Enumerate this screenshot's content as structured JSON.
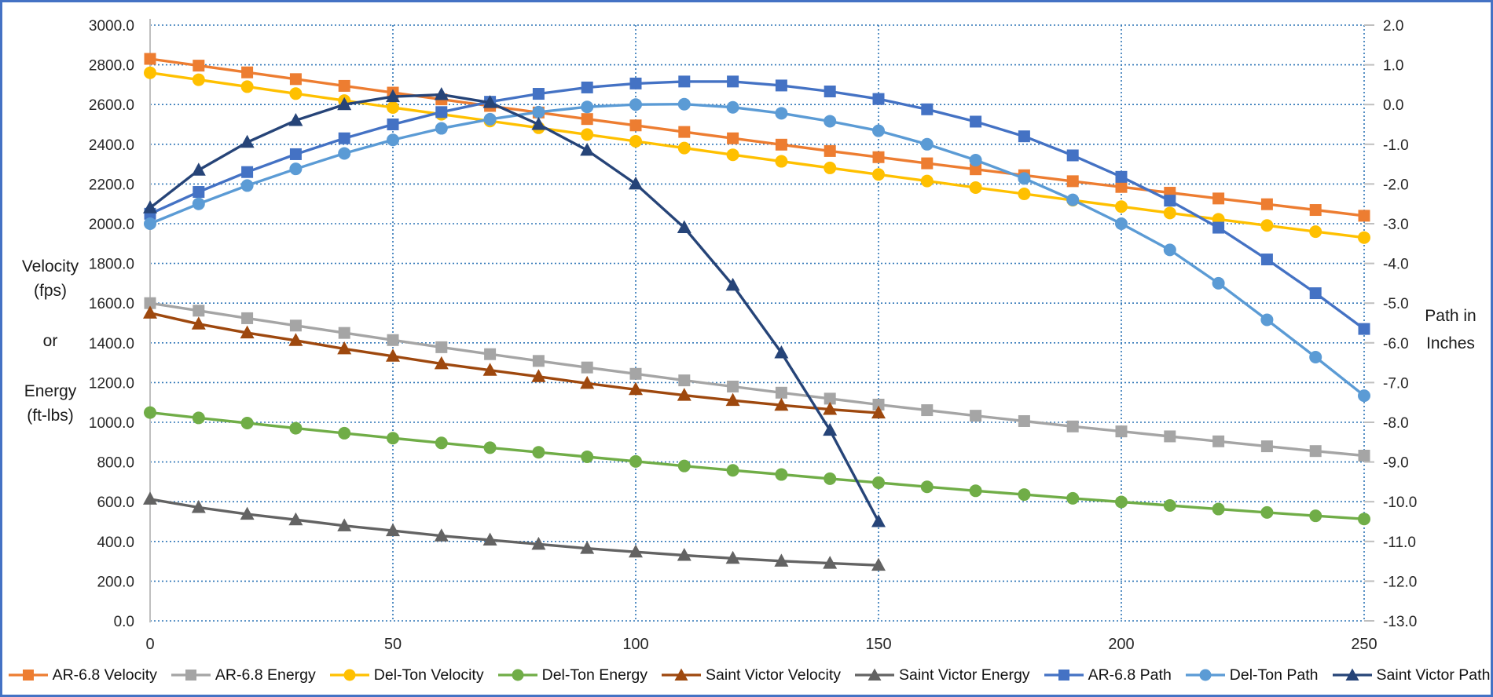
{
  "frame": {
    "border_color": "#4472C4",
    "background": "#ffffff"
  },
  "left_axis_title": {
    "line1": "Velocity",
    "line2": "(fps)",
    "line3": "or",
    "line4": "Energy",
    "line5": "(ft-lbs)"
  },
  "right_axis_title": {
    "line1": "Path in",
    "line2": "Inches"
  },
  "chart_data": {
    "type": "line",
    "title": "",
    "legend_position": "bottom",
    "grid": true,
    "gridline_color": "#2E75B6",
    "axis_line_color": "#BFBFBF",
    "tick_color": "#BFBFBF",
    "x_axis": {
      "min": 0,
      "max": 250,
      "tick_values": [
        0,
        50,
        100,
        150,
        200,
        250
      ],
      "tick_labels": [
        "0",
        "50",
        "100",
        "150",
        "200",
        "250"
      ],
      "gridline_values": [
        50,
        100,
        150,
        200,
        250
      ]
    },
    "left_axis": {
      "min": 0,
      "max": 3000,
      "step": 200,
      "tick_values": [
        0,
        200,
        400,
        600,
        800,
        1000,
        1200,
        1400,
        1600,
        1800,
        2000,
        2200,
        2400,
        2600,
        2800,
        3000
      ],
      "tick_labels": [
        "0.0",
        "200.0",
        "400.0",
        "600.0",
        "800.0",
        "1000.0",
        "1200.0",
        "1400.0",
        "1600.0",
        "1800.0",
        "2000.0",
        "2200.0",
        "2400.0",
        "2600.0",
        "2800.0",
        "3000.0"
      ]
    },
    "right_axis": {
      "min": -13,
      "max": 2,
      "step": 1,
      "tick_values": [
        -13,
        -12,
        -11,
        -10,
        -9,
        -8,
        -7,
        -6,
        -5,
        -4,
        -3,
        -2,
        -1,
        0,
        1,
        2
      ],
      "tick_labels": [
        "-13.0",
        "-12.0",
        "-11.0",
        "-10.0",
        "-9.0",
        "-8.0",
        "-7.0",
        "-6.0",
        "-5.0",
        "-4.0",
        "-3.0",
        "-2.0",
        "-1.0",
        "0.0",
        "1.0",
        "2.0"
      ]
    },
    "x": [
      0,
      10,
      20,
      30,
      40,
      50,
      60,
      70,
      80,
      90,
      100,
      110,
      120,
      130,
      140,
      150,
      160,
      170,
      180,
      190,
      200,
      210,
      220,
      230,
      240,
      250
    ],
    "series": [
      {
        "name": "AR-6.8 Velocity",
        "axis": "left",
        "color": "#ED7D31",
        "marker": "square",
        "values": [
          2830,
          2796,
          2762,
          2728,
          2694,
          2660,
          2626,
          2593,
          2560,
          2527,
          2495,
          2462,
          2430,
          2398,
          2366,
          2335,
          2304,
          2274,
          2244,
          2214,
          2185,
          2156,
          2127,
          2098,
          2069,
          2040
        ]
      },
      {
        "name": "AR-6.8 Energy",
        "axis": "left",
        "color": "#A5A5A5",
        "marker": "square",
        "values": [
          1600,
          1562,
          1524,
          1487,
          1450,
          1414,
          1378,
          1343,
          1309,
          1276,
          1244,
          1211,
          1180,
          1149,
          1119,
          1089,
          1061,
          1033,
          1006,
          979,
          954,
          929,
          904,
          879,
          855,
          832
        ]
      },
      {
        "name": "Del-Ton Velocity",
        "axis": "left",
        "color": "#FFC000",
        "marker": "circle",
        "values": [
          2760,
          2725,
          2690,
          2655,
          2620,
          2585,
          2551,
          2517,
          2483,
          2449,
          2415,
          2381,
          2347,
          2314,
          2281,
          2248,
          2215,
          2182,
          2150,
          2118,
          2086,
          2054,
          2022,
          1991,
          1960,
          1930
        ]
      },
      {
        "name": "Del-Ton Energy",
        "axis": "left",
        "color": "#70AD47",
        "marker": "circle",
        "values": [
          1049,
          1022,
          996,
          970,
          945,
          920,
          896,
          872,
          849,
          826,
          803,
          780,
          758,
          737,
          716,
          696,
          675,
          655,
          636,
          617,
          599,
          581,
          563,
          546,
          529,
          513
        ]
      },
      {
        "name": "Saint Victor Velocity",
        "axis": "left",
        "color": "#9E480E",
        "marker": "triangle",
        "values": [
          1550,
          1495,
          1450,
          1412,
          1370,
          1333,
          1295,
          1262,
          1230,
          1196,
          1165,
          1136,
          1110,
          1086,
          1065,
          1047
        ]
      },
      {
        "name": "Saint Victor Energy",
        "axis": "left",
        "color": "#636363",
        "marker": "triangle",
        "values": [
          613,
          571,
          537,
          509,
          479,
          454,
          428,
          407,
          386,
          365,
          347,
          330,
          315,
          301,
          290,
          280
        ]
      },
      {
        "name": "AR-6.8 Path",
        "axis": "right",
        "color": "#4472C4",
        "marker": "square",
        "values": [
          -2.75,
          -2.2,
          -1.7,
          -1.25,
          -0.85,
          -0.5,
          -0.19,
          0.07,
          0.27,
          0.43,
          0.53,
          0.58,
          0.58,
          0.48,
          0.33,
          0.14,
          -0.12,
          -0.43,
          -0.8,
          -1.28,
          -1.82,
          -2.42,
          -3.1,
          -3.9,
          -4.75,
          -5.65
        ]
      },
      {
        "name": "Del-Ton Path",
        "axis": "right",
        "color": "#5B9BD5",
        "marker": "circle",
        "values": [
          -3.0,
          -2.5,
          -2.04,
          -1.62,
          -1.23,
          -0.89,
          -0.6,
          -0.37,
          -0.19,
          -0.06,
          0.0,
          0.01,
          -0.07,
          -0.22,
          -0.42,
          -0.66,
          -1.0,
          -1.4,
          -1.86,
          -2.4,
          -3.0,
          -3.66,
          -4.5,
          -5.42,
          -6.36,
          -7.33
        ]
      },
      {
        "name": "Saint Victor Path",
        "axis": "right",
        "color": "#264478",
        "marker": "triangle",
        "values": [
          -2.6,
          -1.65,
          -0.95,
          -0.4,
          0.0,
          0.2,
          0.25,
          0.05,
          -0.5,
          -1.15,
          -2.0,
          -3.1,
          -4.55,
          -6.25,
          -8.2,
          -10.5
        ]
      }
    ]
  }
}
